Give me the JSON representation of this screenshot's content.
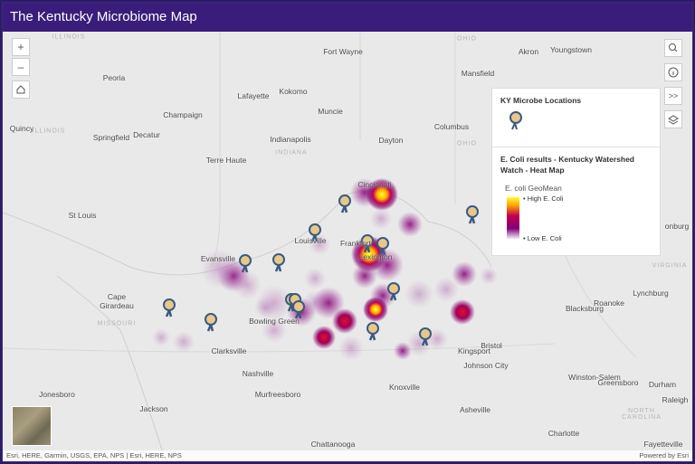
{
  "header": {
    "title": "The Kentucky Microbiome Map"
  },
  "map": {
    "labels": [
      "Fort Wayne",
      "Akron",
      "Youngstown",
      "Peoria",
      "Mansfield",
      "Lafayette",
      "Kokomo",
      "Muncie",
      "Champaign",
      "Quincy",
      "Springfield",
      "Decatur",
      "Indianapolis",
      "Dayton",
      "Columbus",
      "Terre Haute",
      "St Louis",
      "Louisville",
      "Frankfort",
      "Lexington",
      "Cincinnati",
      "Evansville",
      "Cape Girardeau",
      "Bowling Green",
      "Clarksville",
      "Nashville",
      "Murfreesboro",
      "Jonesboro",
      "Jackson",
      "Knoxville",
      "Asheville",
      "Chattanooga",
      "Charlotte",
      "Fayetteville",
      "Kingsport",
      "Bristol",
      "Johnson City",
      "Winston-Salem",
      "Greensboro",
      "Durham",
      "Raleigh",
      "Blacksburg",
      "Roanoke",
      "Lynchburg",
      "onburg"
    ],
    "state_labels": [
      "ILLINOIS",
      "ILLINOIS",
      "OHIO",
      "OHIO",
      "INDIANA",
      "MISSOURI",
      "VIRGINIA",
      "NORTH CAROLINA"
    ]
  },
  "controls": {
    "zoom_in": "+",
    "zoom_out": "–",
    "expand": ">>"
  },
  "legend": {
    "layer1_title": "KY Microbe Locations",
    "layer2_title": "E. Coli results - Kentucky Watershed Watch - Heat Map",
    "field": "E. coli GeoMean",
    "high": "High E. Coli",
    "low": "Low E. Coli"
  },
  "footer": {
    "attribution": "Esri, HERE, Garmin, USGS, EPA, NPS | Esri, HERE, NPS",
    "powered_by": "Powered by Esri"
  }
}
